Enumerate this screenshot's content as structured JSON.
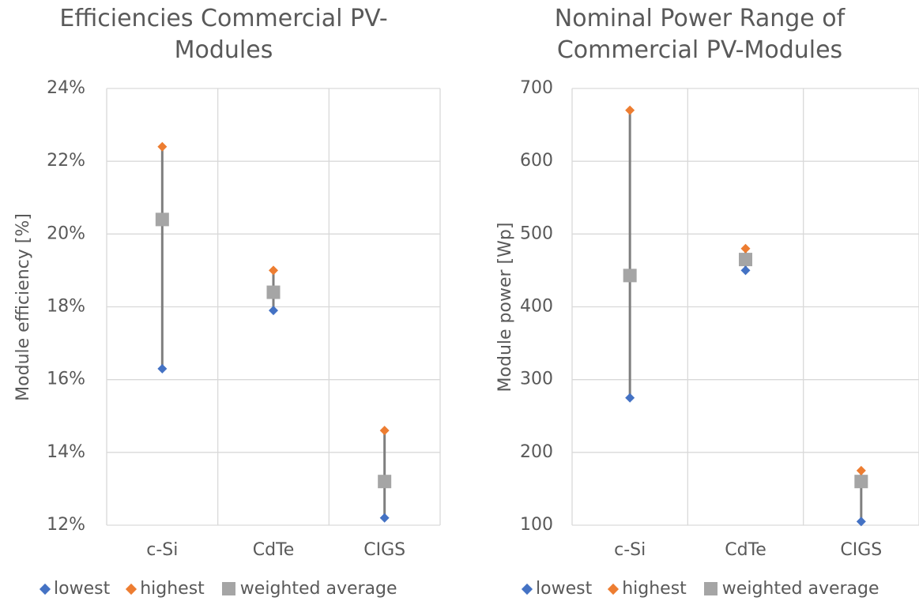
{
  "colors": {
    "lowest": "#4472C4",
    "highest": "#ED7D31",
    "weighted_average": "#A5A5A5",
    "range_line": "#7F7F7F",
    "grid": "#D9D9D9",
    "text": "#595959"
  },
  "chart_data": [
    {
      "type": "scatter",
      "title_line1": "Efficiencies Commercial PV-",
      "title_line2": "Modules",
      "xlabel": "",
      "ylabel": "Module efficiency [%]",
      "categories": [
        "c-Si",
        "CdTe",
        "CIGS"
      ],
      "ylim": [
        12,
        24
      ],
      "yticks": [
        "12%",
        "14%",
        "16%",
        "18%",
        "20%",
        "22%",
        "24%"
      ],
      "series": [
        {
          "name": "lowest",
          "values": [
            16.3,
            17.9,
            12.2
          ]
        },
        {
          "name": "highest",
          "values": [
            22.4,
            19.0,
            14.6
          ]
        },
        {
          "name": "weighted average",
          "values": [
            20.4,
            18.4,
            13.2
          ]
        }
      ],
      "grid": true,
      "legend": "bottom"
    },
    {
      "type": "scatter",
      "title_line1": "Nominal Power Range of",
      "title_line2": "Commercial PV-Modules",
      "xlabel": "",
      "ylabel": "Module power [Wp]",
      "categories": [
        "c-Si",
        "CdTe",
        "CIGS"
      ],
      "ylim": [
        100,
        700
      ],
      "yticks": [
        "100",
        "200",
        "300",
        "400",
        "500",
        "600",
        "700"
      ],
      "series": [
        {
          "name": "lowest",
          "values": [
            275,
            450,
            105
          ]
        },
        {
          "name": "highest",
          "values": [
            670,
            480,
            175
          ]
        },
        {
          "name": "weighted average",
          "values": [
            443,
            465,
            160
          ]
        }
      ],
      "grid": true,
      "legend": "bottom"
    }
  ]
}
